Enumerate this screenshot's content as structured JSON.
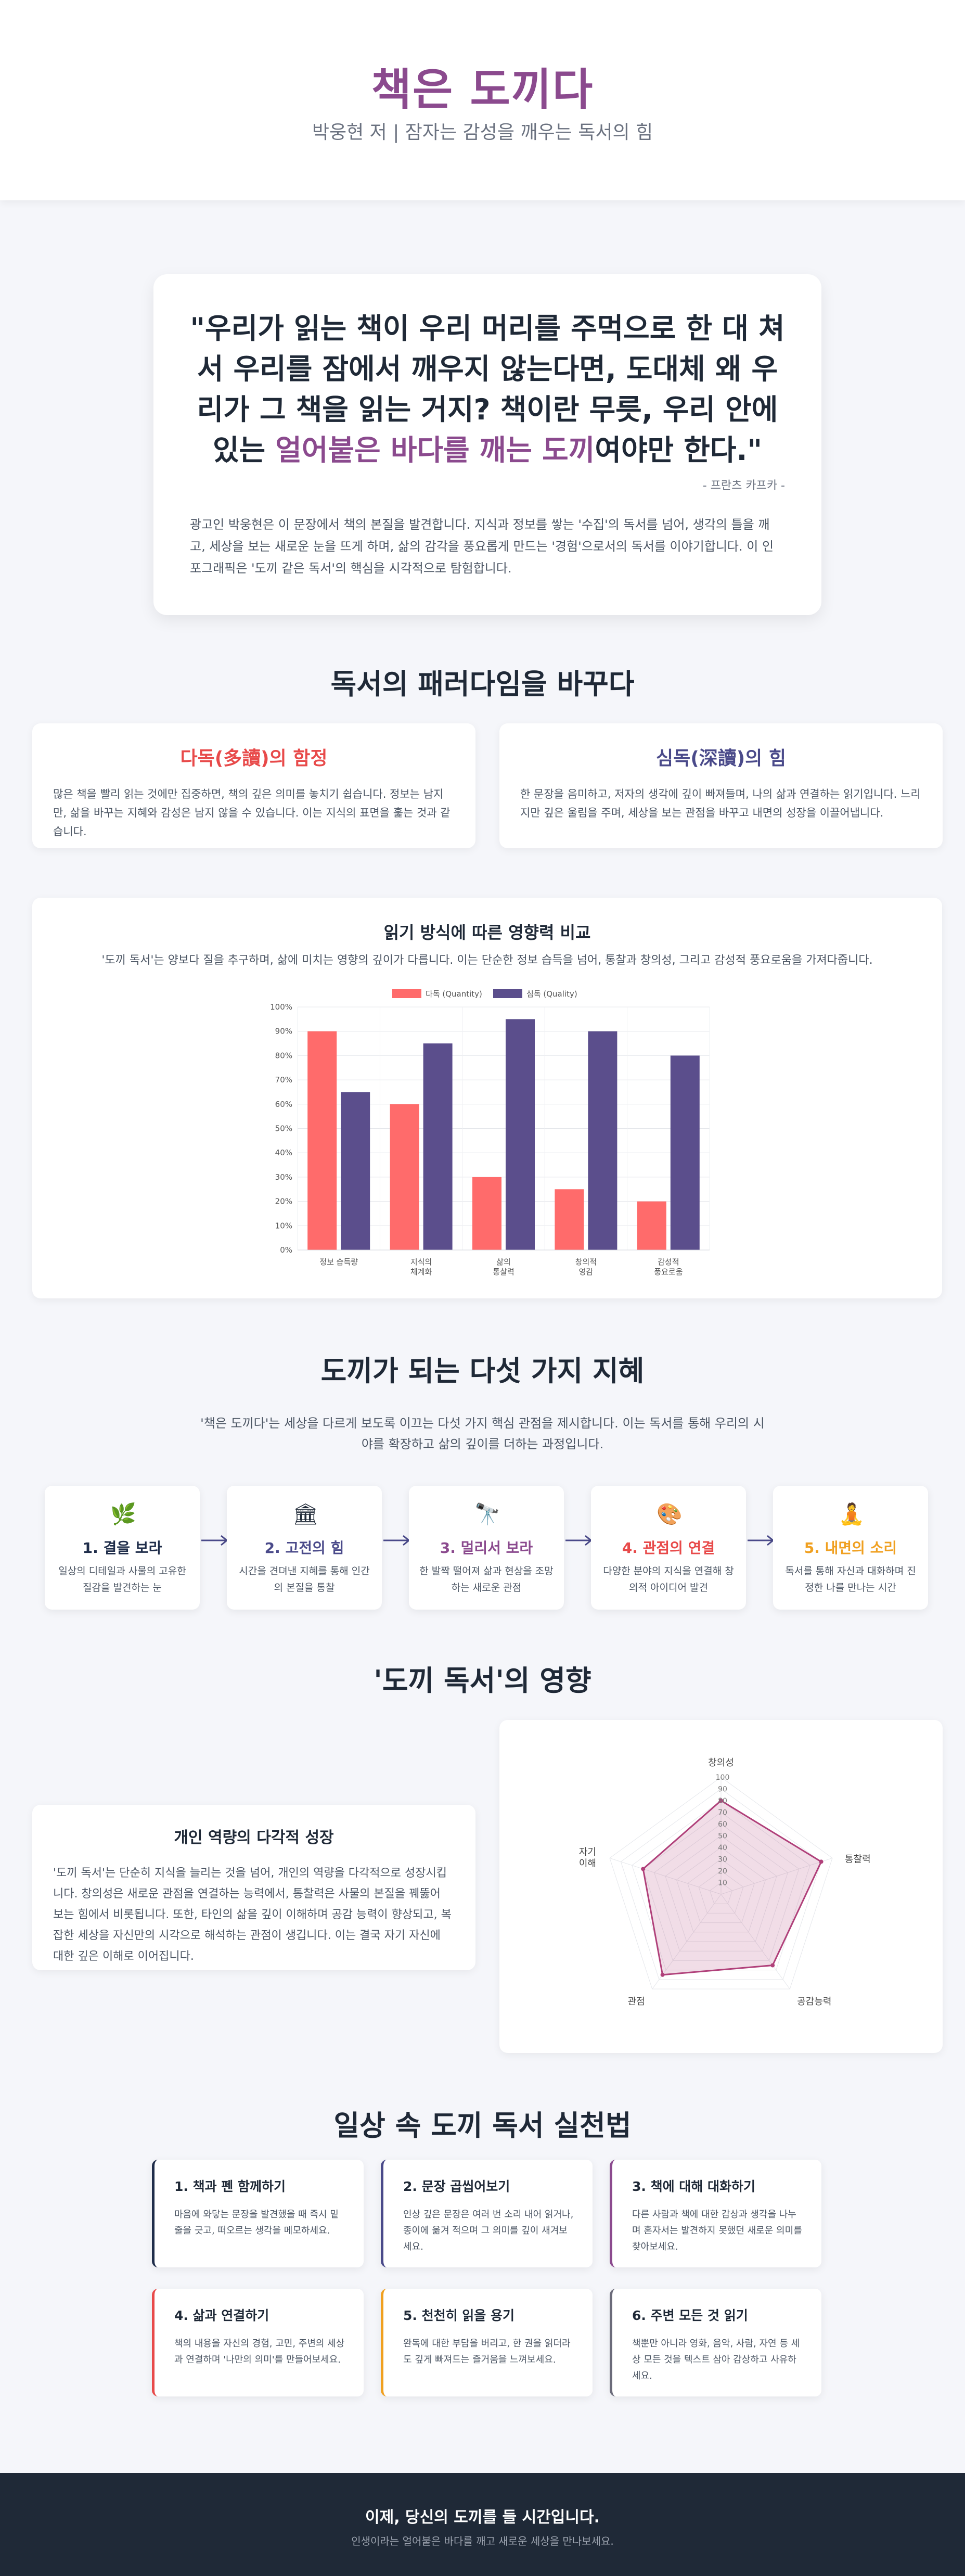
{
  "header": {
    "title": "책은 도끼다",
    "subtitle": "박웅현 저 | 잠자는 감성을 깨우는 독서의 힘"
  },
  "quote": {
    "text_before": "\"우리가 읽는 책이 우리 머리를 주먹으로 한 대 쳐서 우리를 잠에서 깨우지 않는다면, 도대체 왜 우리가 그 책을 읽는 거지? 책이란 무릇, 우리 안에 있는 ",
    "highlight": "얼어붙은 바다를 깨는 도끼",
    "text_after": "여야만 한다.\"",
    "author": "- 프란츠 카프카 -",
    "description": "광고인 박웅현은 이 문장에서 책의 본질을 발견합니다. 지식과 정보를 쌓는 '수집'의 독서를 넘어, 생각의 틀을 깨고, 세상을 보는 새로운 눈을 뜨게 하며, 삶의 감각을 풍요롭게 만드는 '경험'으로서의 독서를 이야기합니다. 이 인포그래픽은 '도끼 같은 독서'의 핵심을 시각적으로 탐험합니다."
  },
  "paradigm": {
    "title": "독서의 패러다임을 바꾸다",
    "cards": [
      {
        "title": "다독(多讀)의 함정",
        "text": "많은 책을 빨리 읽는 것에만 집중하면, 책의 깊은 의미를 놓치기 쉽습니다. 정보는 남지만, 삶을 바꾸는 지혜와 감성은 남지 않을 수 있습니다. 이는 지식의 표면을 훑는 것과 같습니다.",
        "color": "#e84a4a"
      },
      {
        "title": "심독(深讀)의 힘",
        "text": "한 문장을 음미하고, 저자의 생각에 깊이 빠져들며, 나의 삶과 연결하는 읽기입니다. 느리지만 깊은 울림을 주며, 세상을 보는 관점을 바꾸고 내면의 성장을 이끌어냅니다.",
        "color": "#4a4a8a"
      }
    ]
  },
  "chart": {
    "title": "읽기 방식에 따른 영향력 비교",
    "subtitle": "'도끼 독서'는 양보다 질을 추구하며, 삶에 미치는 영향의 깊이가 다릅니다. 이는 단순한 정보 습득을 넘어, 통찰과 창의성, 그리고 감성적 풍요로움을 가져다줍니다."
  },
  "chart_data": {
    "type": "bar",
    "categories": [
      [
        "정보 습득량"
      ],
      [
        "지식의",
        "체계화"
      ],
      [
        "삶의",
        "통찰력"
      ],
      [
        "창의적",
        "영감"
      ],
      [
        "감성적",
        "풍요로움"
      ]
    ],
    "series": [
      {
        "name": "다독 (Quantity)",
        "values": [
          90,
          60,
          30,
          25,
          20
        ],
        "color": "#ff6b6b"
      },
      {
        "name": "심독 (Quality)",
        "values": [
          65,
          85,
          95,
          90,
          80
        ],
        "color": "#5b4e8c"
      }
    ],
    "ylim": [
      0,
      100
    ],
    "yticks": [
      "0%",
      "10%",
      "20%",
      "30%",
      "40%",
      "50%",
      "60%",
      "70%",
      "80%",
      "90%",
      "100%"
    ],
    "legend": "top",
    "grid": true
  },
  "wisdom": {
    "title": "도끼가 되는 다섯 가지 지혜",
    "description": "'책은 도끼다'는 세상을 다르게 보도록 이끄는 다섯 가지 핵심 관점을 제시합니다. 이는 독서를 통해 우리의 시야를 확장하고 삶의 깊이를 더하는 과정입니다.",
    "steps": [
      {
        "icon": "🌿",
        "icon_name": "sprout-icon",
        "title": "1. 결을 보라",
        "text": "일상의 디테일과 사물의 고유한 질감을 발견하는 눈",
        "color": "#1f2d4a"
      },
      {
        "icon": "🏛",
        "icon_name": "classical-building-icon",
        "title": "2. 고전의 힘",
        "text": "시간을 견뎌낸 지혜를 통해 인간의 본질을 통찰",
        "color": "#4a4a8a"
      },
      {
        "icon": "🔭",
        "icon_name": "telescope-icon",
        "title": "3. 멀리서 보라",
        "text": "한 발짝 떨어져 삶과 현상을 조망하는 새로운 관점",
        "color": "#8b4a8e"
      },
      {
        "icon": "🎨",
        "icon_name": "palette-icon",
        "title": "4. 관점의 연결",
        "text": "다양한 분야의 지식을 연결해 창의적 아이디어 발견",
        "color": "#e84a4a"
      },
      {
        "icon": "🧘",
        "icon_name": "meditation-icon",
        "title": "5. 내면의 소리",
        "text": "독서를 통해 자신과 대화하며 진정한 나를 만나는 시간",
        "color": "#f0a020"
      }
    ]
  },
  "impact": {
    "title": "'도끼 독서'의 영향",
    "card_title": "개인 역량의 다각적 성장",
    "card_text": "'도끼 독서'는 단순히 지식을 늘리는 것을 넘어, 개인의 역량을 다각적으로 성장시킵니다. 창의성은 새로운 관점을 연결하는 능력에서, 통찰력은 사물의 본질을 꿰뚫어 보는 힘에서 비롯됩니다. 또한, 타인의 삶을 깊이 이해하며 공감 능력이 향상되고, 복잡한 세상을 자신만의 시각으로 해석하는 관점이 생깁니다. 이는 결국 자기 자신에 대한 깊은 이해로 이어집니다."
  },
  "radar_data": {
    "type": "radar",
    "axes": [
      [
        "창의성"
      ],
      [
        "통찰력"
      ],
      [
        "공감능력"
      ],
      [
        "관점"
      ],
      [
        "자기",
        "이해"
      ]
    ],
    "values": [
      80,
      90,
      75,
      85,
      70
    ],
    "ticks": [
      "10",
      "20",
      "30",
      "40",
      "50",
      "60",
      "70",
      "80",
      "90",
      "100"
    ],
    "range": [
      0,
      100
    ],
    "color": "#b0407a"
  },
  "practice": {
    "title": "일상 속 도끼 독서 실천법",
    "items": [
      {
        "title": "1. 책과 펜 함께하기",
        "text": "마음에 와닿는 문장을 발견했을 때 즉시 밑줄을 긋고, 떠오르는 생각을 메모하세요.",
        "color": "#1f2d4a"
      },
      {
        "title": "2. 문장 곱씹어보기",
        "text": "인상 깊은 문장은 여러 번 소리 내어 읽거나, 종이에 옮겨 적으며 그 의미를 깊이 새겨보세요.",
        "color": "#4a4a8a"
      },
      {
        "title": "3. 책에 대해 대화하기",
        "text": "다른 사람과 책에 대한 감상과 생각을 나누며 혼자서는 발견하지 못했던 새로운 의미를 찾아보세요.",
        "color": "#8b4a8e"
      },
      {
        "title": "4. 삶과 연결하기",
        "text": "책의 내용을 자신의 경험, 고민, 주변의 세상과 연결하며 '나만의 의미'를 만들어보세요.",
        "color": "#e84a4a"
      },
      {
        "title": "5. 천천히 읽을 용기",
        "text": "완독에 대한 부담을 버리고, 한 권을 읽더라도 깊게 빠져드는 즐거움을 느껴보세요.",
        "color": "#f0a020"
      },
      {
        "title": "6. 주변 모든 것 읽기",
        "text": "책뿐만 아니라 영화, 음악, 사람, 자연 등 세상 모든 것을 텍스트 삼아 감상하고 사유하세요.",
        "color": "#6b6b7a"
      }
    ]
  },
  "footer": {
    "title": "이제, 당신의 도끼를 들 시간입니다.",
    "subtitle": "인생이라는 얼어붙은 바다를 깨고 새로운 세상을 만나보세요."
  }
}
